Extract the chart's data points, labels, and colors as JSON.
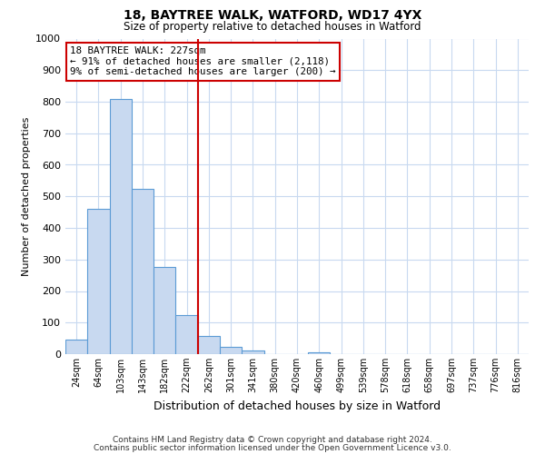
{
  "title1": "18, BAYTREE WALK, WATFORD, WD17 4YX",
  "title2": "Size of property relative to detached houses in Watford",
  "xlabel": "Distribution of detached houses by size in Watford",
  "ylabel": "Number of detached properties",
  "bin_labels": [
    "24sqm",
    "64sqm",
    "103sqm",
    "143sqm",
    "182sqm",
    "222sqm",
    "262sqm",
    "301sqm",
    "341sqm",
    "380sqm",
    "420sqm",
    "460sqm",
    "499sqm",
    "539sqm",
    "578sqm",
    "618sqm",
    "658sqm",
    "697sqm",
    "737sqm",
    "776sqm",
    "816sqm"
  ],
  "bar_heights": [
    47,
    460,
    810,
    525,
    275,
    125,
    57,
    22,
    12,
    0,
    0,
    7,
    0,
    0,
    0,
    0,
    0,
    0,
    0,
    0,
    0
  ],
  "bar_color": "#c8d9f0",
  "bar_edge_color": "#5b9bd5",
  "vline_x": 5.5,
  "vline_color": "#cc0000",
  "annotation_line1": "18 BAYTREE WALK: 227sqm",
  "annotation_line2": "← 91% of detached houses are smaller (2,118)",
  "annotation_line3": "9% of semi-detached houses are larger (200) →",
  "annotation_box_color": "#ffffff",
  "annotation_box_edge": "#cc0000",
  "ylim": [
    0,
    1000
  ],
  "yticks": [
    0,
    100,
    200,
    300,
    400,
    500,
    600,
    700,
    800,
    900,
    1000
  ],
  "footer1": "Contains HM Land Registry data © Crown copyright and database right 2024.",
  "footer2": "Contains public sector information licensed under the Open Government Licence v3.0.",
  "background_color": "#ffffff",
  "grid_color": "#c8d9f0"
}
